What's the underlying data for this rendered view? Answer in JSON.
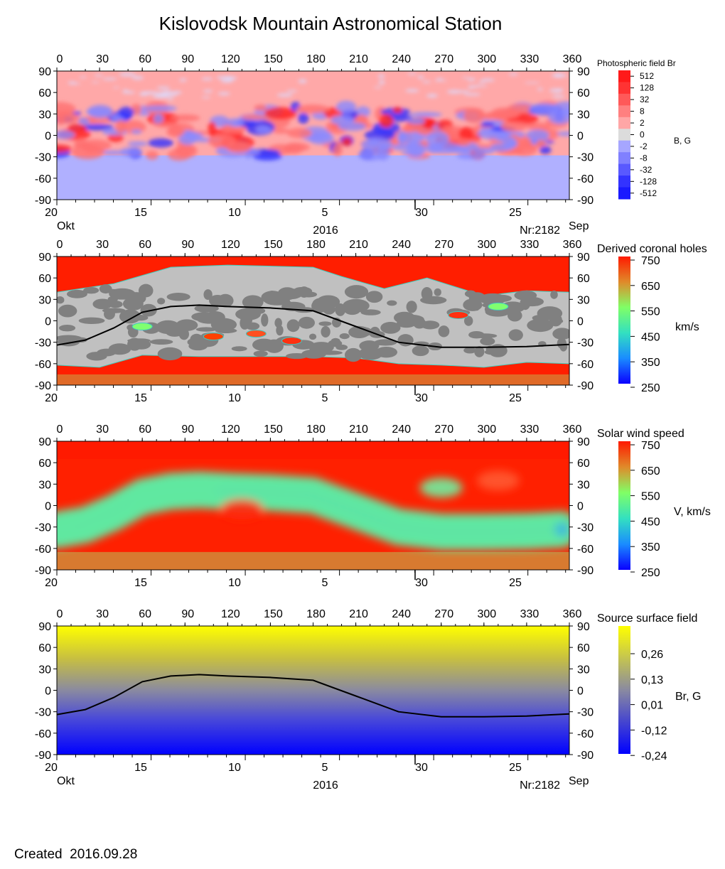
{
  "header": {
    "title": "Kislovodsk Mountain Astronomical Station"
  },
  "footer": {
    "created_label": "Created",
    "created_date": "2016.09.28"
  },
  "chart_data": [
    {
      "type": "heatmap",
      "panel": "photospheric",
      "legend_title": "Photospheric field Br",
      "unit_label": "B, G",
      "colorbar_ticks": [
        "512",
        "128",
        "32",
        "8",
        "2",
        "0",
        "-2",
        "-8",
        "-32",
        "-128",
        "-512"
      ],
      "colorbar_colors": [
        "#ff1a1a",
        "#ff3333",
        "#ff5959",
        "#ff8080",
        "#ffa6a6",
        "#dcdcdc",
        "#a6a6ff",
        "#8080ff",
        "#5959ff",
        "#3333ff",
        "#1a1aff"
      ],
      "top_axis": [
        "0",
        "30",
        "60",
        "90",
        "120",
        "150",
        "180",
        "210",
        "240",
        "270",
        "300",
        "330",
        "360"
      ],
      "lat_axis": [
        "90",
        "60",
        "30",
        "0",
        "-30",
        "-60",
        "-90"
      ],
      "date_axis": [
        "20",
        "15",
        "10",
        "5",
        "30",
        "25"
      ],
      "bottom_labels": {
        "left": "Okt",
        "center": "2016",
        "right": "Nr:2182",
        "far_right": "Sep"
      }
    },
    {
      "type": "heatmap",
      "panel": "coronal-holes",
      "legend_title": "Derived coronal holes",
      "unit_label": "km/s",
      "colorbar_ticks": [
        "750",
        "650",
        "550",
        "450",
        "350",
        "250"
      ],
      "colorbar_range": [
        250,
        750
      ],
      "top_axis": [
        "0",
        "30",
        "60",
        "90",
        "120",
        "150",
        "180",
        "210",
        "240",
        "270",
        "300",
        "330",
        "360"
      ],
      "lat_axis": [
        "90",
        "60",
        "30",
        "0",
        "-30",
        "-60",
        "-90"
      ],
      "date_axis": [
        "20",
        "15",
        "10",
        "5",
        "30",
        "25"
      ],
      "neutral_line": {
        "x": [
          0,
          20,
          40,
          60,
          80,
          100,
          120,
          150,
          180,
          210,
          240,
          270,
          300,
          330,
          360
        ],
        "y": [
          -34,
          -27,
          -10,
          12,
          20,
          22,
          20,
          18,
          14,
          -8,
          -30,
          -37,
          -37,
          -36,
          -33
        ]
      }
    },
    {
      "type": "heatmap",
      "panel": "solar-wind",
      "legend_title": "Solar wind speed",
      "unit_label": "V, km/s",
      "colorbar_ticks": [
        "750",
        "650",
        "550",
        "450",
        "350",
        "250"
      ],
      "colorbar_range": [
        250,
        750
      ],
      "top_axis": [
        "0",
        "30",
        "60",
        "90",
        "120",
        "150",
        "180",
        "210",
        "240",
        "270",
        "300",
        "330",
        "360"
      ],
      "lat_axis": [
        "90",
        "60",
        "30",
        "0",
        "-30",
        "-60",
        "-90"
      ],
      "date_axis": [
        "20",
        "15",
        "10",
        "5",
        "30",
        "25"
      ]
    },
    {
      "type": "heatmap",
      "panel": "source-surface",
      "legend_title": "Source surface field",
      "unit_label": "Br, G",
      "colorbar_ticks": [
        "0,26",
        "0,13",
        "0,01",
        "-0,12",
        "-0,24"
      ],
      "top_axis": [
        "0",
        "30",
        "60",
        "90",
        "120",
        "150",
        "180",
        "210",
        "240",
        "270",
        "300",
        "330",
        "360"
      ],
      "lat_axis": [
        "90",
        "60",
        "30",
        "0",
        "-30",
        "-60",
        "-90"
      ],
      "date_axis": [
        "20",
        "15",
        "10",
        "5",
        "30",
        "25"
      ],
      "bottom_labels": {
        "left": "Okt",
        "center": "2016",
        "right": "Nr:2182",
        "far_right": "Sep"
      },
      "neutral_line": {
        "x": [
          0,
          20,
          40,
          60,
          80,
          100,
          120,
          150,
          180,
          210,
          240,
          270,
          300,
          330,
          360
        ],
        "y": [
          -34,
          -27,
          -10,
          12,
          20,
          22,
          20,
          18,
          14,
          -8,
          -30,
          -37,
          -37,
          -36,
          -33
        ]
      }
    }
  ]
}
